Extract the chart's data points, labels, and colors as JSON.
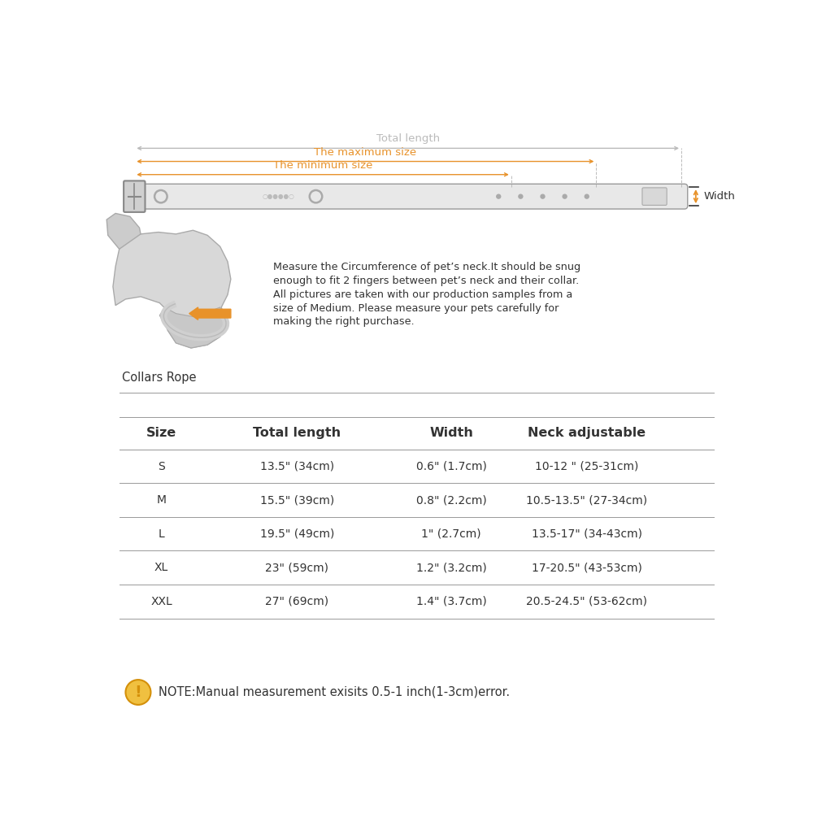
{
  "bg_color": "#ffffff",
  "orange_color": "#E8922A",
  "dark_color": "#333333",
  "gray_color": "#aaaaaa",
  "light_gray": "#bbbbbb",
  "table_line_color": "#999999",
  "collar_color": "#e8e8e8",
  "collar_stroke": "#999999",
  "dim_labels": [
    "Total length",
    "The maximum size",
    "The minimum size"
  ],
  "width_label": "Width",
  "measure_text_lines": [
    "Measure the Circumference of pet’s neck.It should be snug",
    "enough to fit 2 fingers between pet’s neck and their collar.",
    "All pictures are taken with our production samples from a",
    "size of Medium. Please measure your pets carefully for",
    "making the right purchase."
  ],
  "collars_rope_label": "Collars Rope",
  "table_headers": [
    "Size",
    "Total length",
    "Width",
    "Neck adjustable"
  ],
  "table_data": [
    [
      "S",
      "13.5\" (34cm)",
      "0.6\" (1.7cm)",
      "10-12 \" (25-31cm)"
    ],
    [
      "M",
      "15.5\" (39cm)",
      "0.8\" (2.2cm)",
      "10.5-13.5\" (27-34cm)"
    ],
    [
      "L",
      "19.5\" (49cm)",
      "1\" (2.7cm)",
      "13.5-17\" (34-43cm)"
    ],
    [
      "XL",
      "23\" (59cm)",
      "1.2\" (3.2cm)",
      "17-20.5\" (43-53cm)"
    ],
    [
      "XXL",
      "27\" (69cm)",
      "1.4\" (3.7cm)",
      "20.5-24.5\" (53-62cm)"
    ]
  ],
  "note_text": "NOTE:Manual measurement exisits 0.5-1 inch(1-3cm)error.",
  "note_icon_color": "#F0C040",
  "note_icon_stroke": "#D4900A"
}
